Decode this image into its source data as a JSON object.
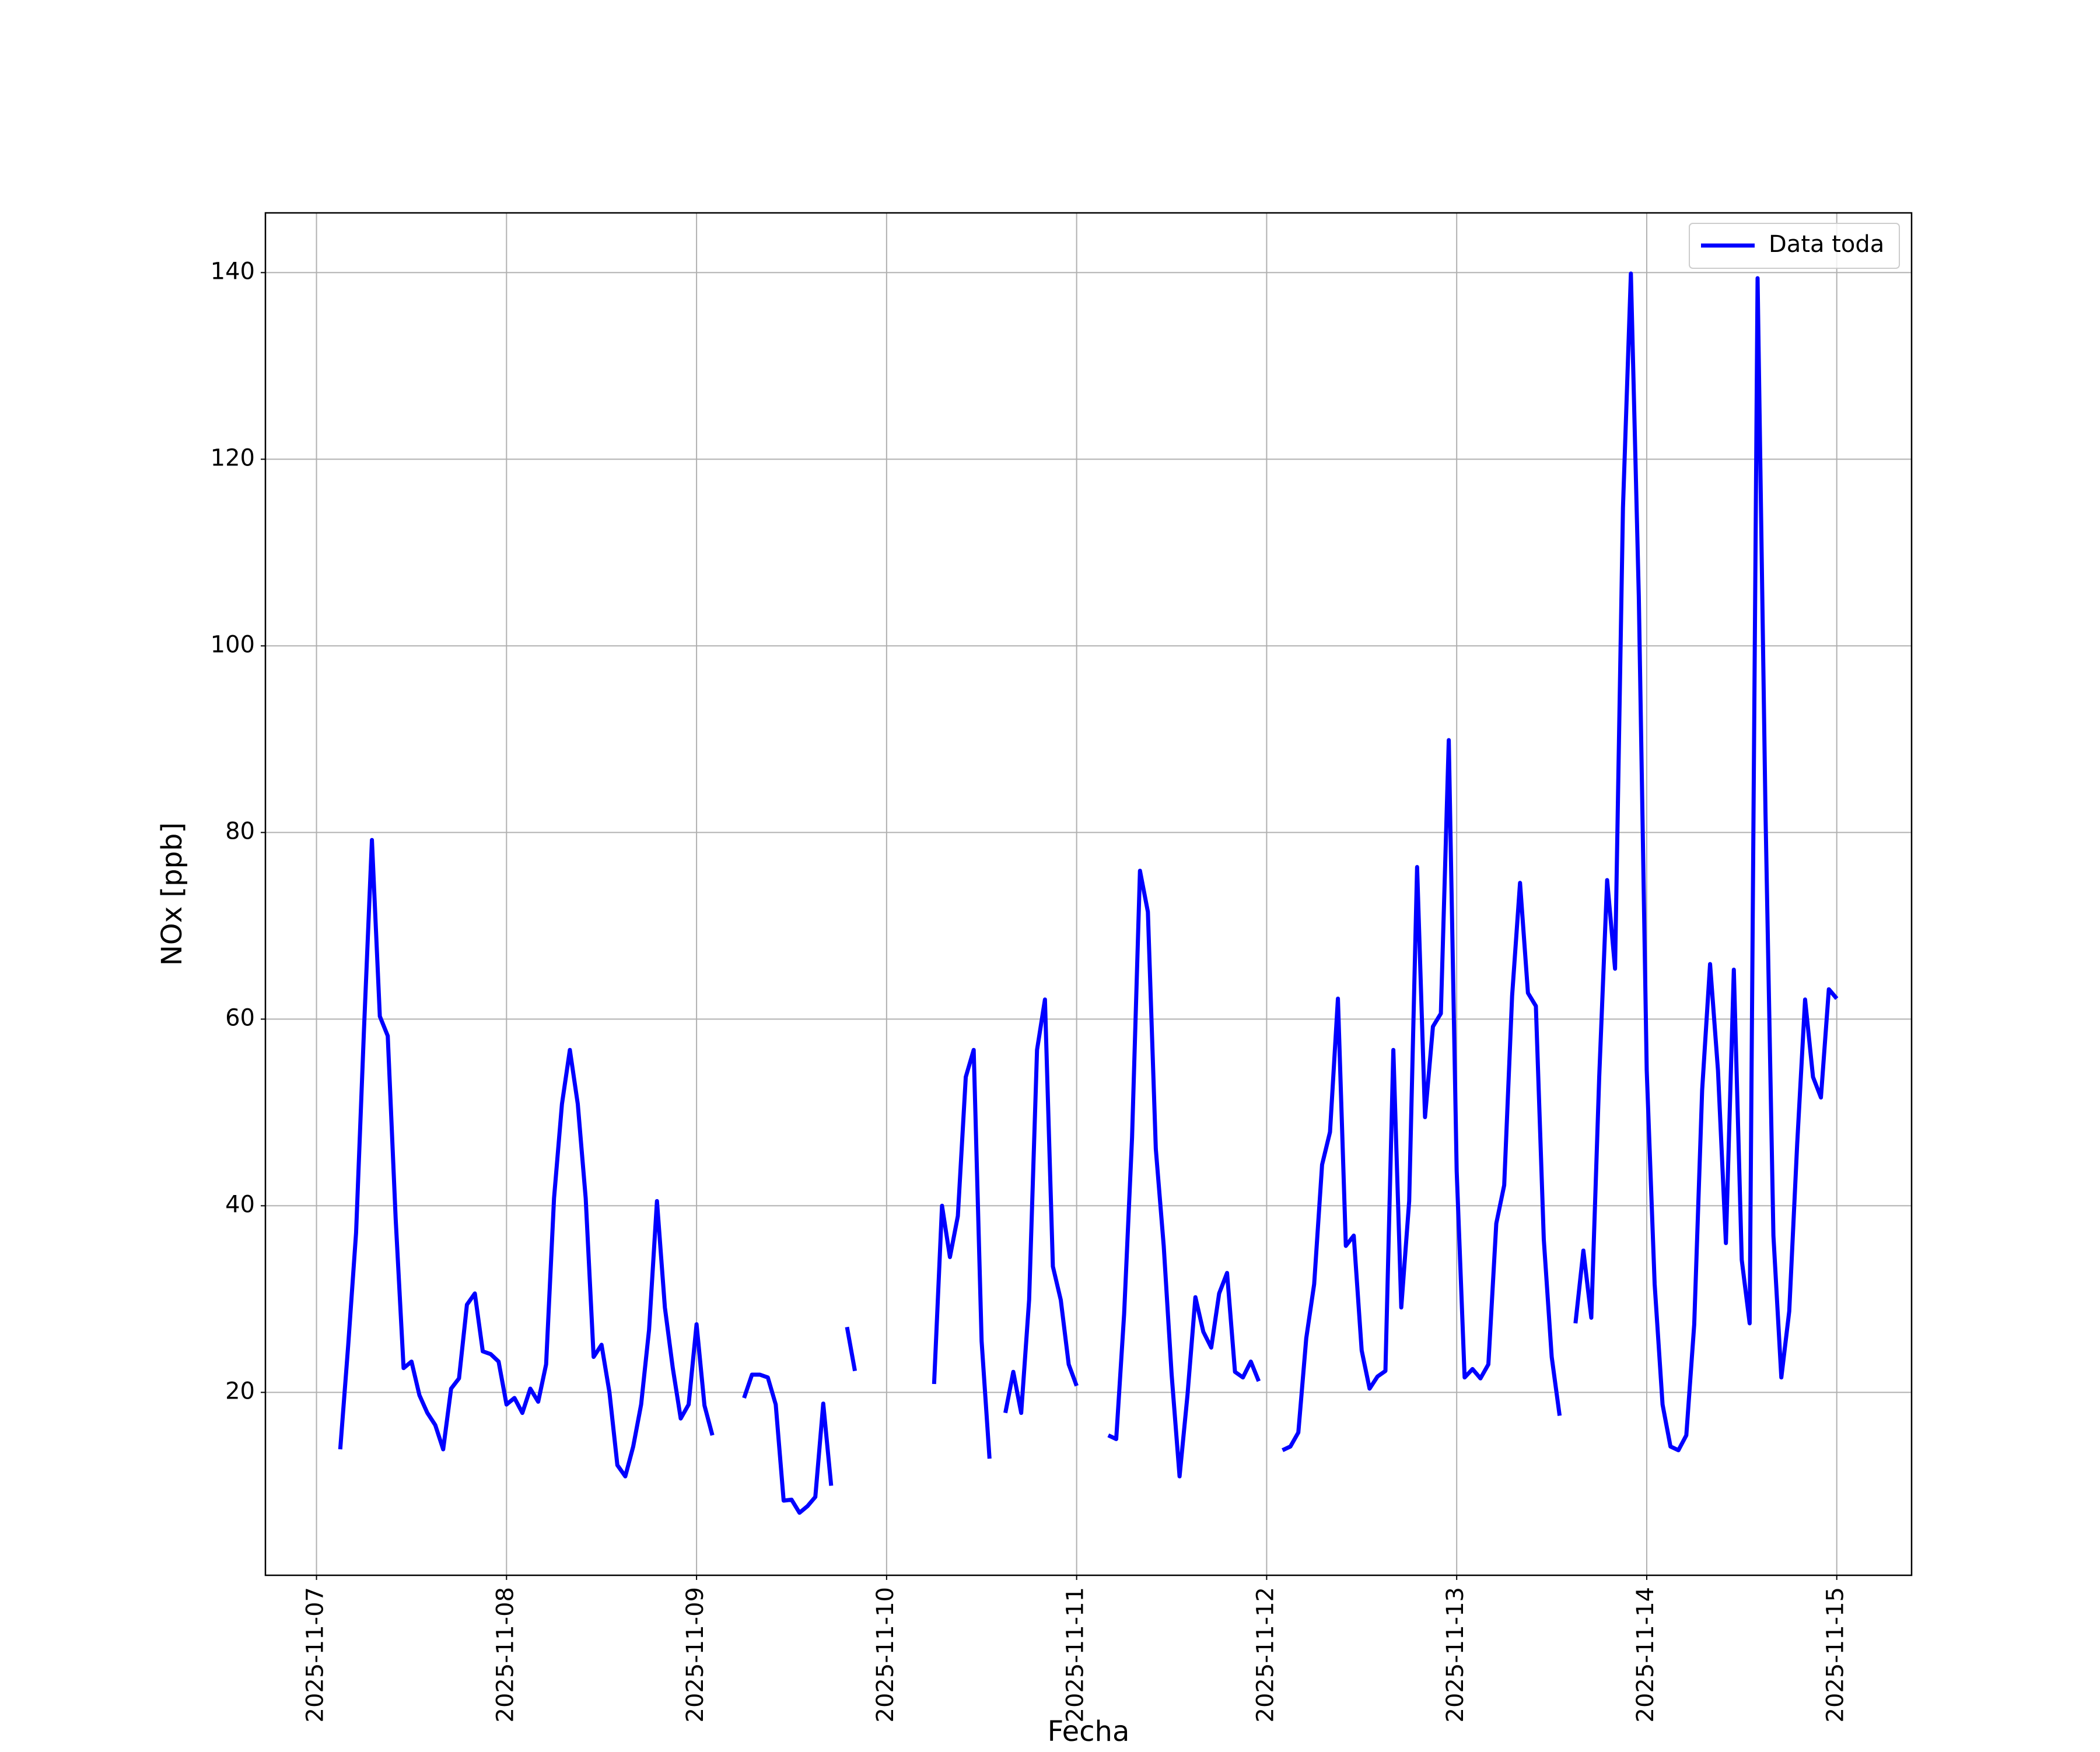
{
  "chart_data": {
    "type": "line",
    "xlabel": "Fecha",
    "ylabel": "NOx [ppb]",
    "xlim": [
      "2025-11-06T17:33",
      "2025-11-15T09:27"
    ],
    "xticks": [
      "2025-11-07",
      "2025-11-08",
      "2025-11-09",
      "2025-11-10",
      "2025-11-11",
      "2025-11-12",
      "2025-11-13",
      "2025-11-14",
      "2025-11-15"
    ],
    "ylim": [
      0.4,
      146.4
    ],
    "yticks": [
      20,
      40,
      60,
      80,
      100,
      120,
      140
    ],
    "grid": true,
    "legend": "upper right",
    "x": [
      "2025-11-07T03:00",
      "2025-11-07T04:00",
      "2025-11-07T05:00",
      "2025-11-07T06:00",
      "2025-11-07T07:00",
      "2025-11-07T08:00",
      "2025-11-07T09:00",
      "2025-11-07T10:00",
      "2025-11-07T11:00",
      "2025-11-07T12:00",
      "2025-11-07T13:00",
      "2025-11-07T14:00",
      "2025-11-07T15:00",
      "2025-11-07T16:00",
      "2025-11-07T17:00",
      "2025-11-07T18:00",
      "2025-11-07T19:00",
      "2025-11-07T20:00",
      "2025-11-07T21:00",
      "2025-11-07T22:00",
      "2025-11-07T23:00",
      "2025-11-08T00:00",
      "2025-11-08T01:00",
      "2025-11-08T02:00",
      "2025-11-08T03:00",
      "2025-11-08T04:00",
      "2025-11-08T05:00",
      "2025-11-08T06:00",
      "2025-11-08T07:00",
      "2025-11-08T08:00",
      "2025-11-08T09:00",
      "2025-11-08T10:00",
      "2025-11-08T11:00",
      "2025-11-08T12:00",
      "2025-11-08T13:00",
      "2025-11-08T14:00",
      "2025-11-08T15:00",
      "2025-11-08T16:00",
      "2025-11-08T17:00",
      "2025-11-08T18:00",
      "2025-11-08T19:00",
      "2025-11-08T20:00",
      "2025-11-08T21:00",
      "2025-11-08T22:00",
      "2025-11-08T23:00",
      "2025-11-09T00:00",
      "2025-11-09T01:00",
      "2025-11-09T02:00",
      "2025-11-09T03:00",
      "2025-11-09T04:00",
      "2025-11-09T05:00",
      "2025-11-09T06:00",
      "2025-11-09T07:00",
      "2025-11-09T08:00",
      "2025-11-09T09:00",
      "2025-11-09T10:00",
      "2025-11-09T11:00",
      "2025-11-09T12:00",
      "2025-11-09T13:00",
      "2025-11-09T14:00",
      "2025-11-09T15:00",
      "2025-11-09T16:00",
      "2025-11-09T17:00",
      "2025-11-09T18:00",
      "2025-11-09T19:00",
      "2025-11-09T20:00",
      "2025-11-09T21:00",
      "2025-11-09T22:00",
      "2025-11-09T23:00",
      "2025-11-10T00:00",
      "2025-11-10T01:00",
      "2025-11-10T02:00",
      "2025-11-10T03:00",
      "2025-11-10T04:00",
      "2025-11-10T05:00",
      "2025-11-10T06:00",
      "2025-11-10T07:00",
      "2025-11-10T08:00",
      "2025-11-10T09:00",
      "2025-11-10T10:00",
      "2025-11-10T11:00",
      "2025-11-10T12:00",
      "2025-11-10T13:00",
      "2025-11-10T14:00",
      "2025-11-10T15:00",
      "2025-11-10T16:00",
      "2025-11-10T17:00",
      "2025-11-10T18:00",
      "2025-11-10T19:00",
      "2025-11-10T20:00",
      "2025-11-10T21:00",
      "2025-11-10T22:00",
      "2025-11-10T23:00",
      "2025-11-11T00:00",
      "2025-11-11T01:00",
      "2025-11-11T02:00",
      "2025-11-11T03:00",
      "2025-11-11T04:00",
      "2025-11-11T05:00",
      "2025-11-11T06:00",
      "2025-11-11T07:00",
      "2025-11-11T08:00",
      "2025-11-11T09:00",
      "2025-11-11T10:00",
      "2025-11-11T11:00",
      "2025-11-11T12:00",
      "2025-11-11T13:00",
      "2025-11-11T14:00",
      "2025-11-11T15:00",
      "2025-11-11T16:00",
      "2025-11-11T17:00",
      "2025-11-11T18:00",
      "2025-11-11T19:00",
      "2025-11-11T20:00",
      "2025-11-11T21:00",
      "2025-11-11T22:00",
      "2025-11-11T23:00",
      "2025-11-12T00:00",
      "2025-11-12T01:00",
      "2025-11-12T02:00",
      "2025-11-12T03:00",
      "2025-11-12T04:00",
      "2025-11-12T05:00",
      "2025-11-12T06:00",
      "2025-11-12T07:00",
      "2025-11-12T08:00",
      "2025-11-12T09:00",
      "2025-11-12T10:00",
      "2025-11-12T11:00",
      "2025-11-12T12:00",
      "2025-11-12T13:00",
      "2025-11-12T14:00",
      "2025-11-12T15:00",
      "2025-11-12T16:00",
      "2025-11-12T17:00",
      "2025-11-12T18:00",
      "2025-11-12T19:00",
      "2025-11-12T20:00",
      "2025-11-12T21:00",
      "2025-11-12T22:00",
      "2025-11-12T23:00",
      "2025-11-13T00:00",
      "2025-11-13T01:00",
      "2025-11-13T02:00",
      "2025-11-13T03:00",
      "2025-11-13T04:00",
      "2025-11-13T05:00",
      "2025-11-13T06:00",
      "2025-11-13T07:00",
      "2025-11-13T08:00",
      "2025-11-13T09:00",
      "2025-11-13T10:00",
      "2025-11-13T11:00",
      "2025-11-13T12:00",
      "2025-11-13T13:00",
      "2025-11-13T14:00",
      "2025-11-13T15:00",
      "2025-11-13T16:00",
      "2025-11-13T17:00",
      "2025-11-13T18:00",
      "2025-11-13T19:00",
      "2025-11-13T20:00",
      "2025-11-13T21:00",
      "2025-11-13T22:00",
      "2025-11-13T23:00",
      "2025-11-14T00:00",
      "2025-11-14T01:00",
      "2025-11-14T02:00",
      "2025-11-14T03:00",
      "2025-11-14T04:00",
      "2025-11-14T05:00",
      "2025-11-14T06:00",
      "2025-11-14T07:00",
      "2025-11-14T08:00",
      "2025-11-14T09:00",
      "2025-11-14T10:00",
      "2025-11-14T11:00",
      "2025-11-14T12:00",
      "2025-11-14T13:00",
      "2025-11-14T14:00",
      "2025-11-14T15:00",
      "2025-11-14T16:00",
      "2025-11-14T17:00",
      "2025-11-14T18:00",
      "2025-11-14T19:00",
      "2025-11-14T20:00",
      "2025-11-14T21:00",
      "2025-11-14T22:00",
      "2025-11-14T23:00",
      "2025-11-15T00:00"
    ],
    "series": [
      {
        "name": "Data toda",
        "color": "#0000ff",
        "values": [
          13.9,
          25,
          37.1,
          58.9,
          79.2,
          60.3,
          58.2,
          38.6,
          22.6,
          23.3,
          19.7,
          17.8,
          16.5,
          13.9,
          20.4,
          21.5,
          29.4,
          30.6,
          24.4,
          24.1,
          23.3,
          18.7,
          19.4,
          17.8,
          20.4,
          19.0,
          23.0,
          40.8,
          50.9,
          56.7,
          50.9,
          40.8,
          23.8,
          25.1,
          20.0,
          12.2,
          11.0,
          14.2,
          18.7,
          26.7,
          40.5,
          29.1,
          22.6,
          17.2,
          18.7,
          27.3,
          18.6,
          15.4,
          null,
          null,
          null,
          19.4,
          21.9,
          21.9,
          21.6,
          18.7,
          8.4,
          8.5,
          7.1,
          7.8,
          8.8,
          18.8,
          10.0,
          null,
          27.0,
          22.3,
          null,
          null,
          null,
          null,
          null,
          null,
          null,
          null,
          null,
          20.9,
          40.0,
          34.5,
          38.9,
          53.8,
          56.7,
          25.5,
          12.9,
          null,
          17.8,
          22.2,
          17.8,
          29.9,
          56.7,
          62.1,
          33.5,
          29.9,
          23.0,
          20.7,
          null,
          null,
          null,
          15.4,
          15.0,
          28.4,
          47.3,
          75.9,
          71.5,
          46.1,
          35.7,
          21.9,
          11.0,
          19.7,
          30.2,
          26.5,
          24.8,
          30.6,
          32.8,
          22.2,
          21.6,
          23.3,
          21.2,
          null,
          null,
          13.8,
          14.2,
          15.7,
          25.8,
          31.6,
          44.4,
          47.9,
          62.2,
          35.7,
          36.8,
          24.5,
          20.4,
          21.7,
          22.3,
          56.7,
          29.1,
          40.5,
          76.3,
          49.5,
          59.2,
          60.6,
          89.9,
          43.7,
          21.6,
          22.5,
          21.5,
          23.0,
          38.1,
          42.2,
          62.5,
          74.6,
          62.8,
          61.4,
          36.4,
          23.8,
          17.5,
          null,
          27.4,
          35.2,
          28.0,
          53.8,
          74.9,
          65.4,
          114.8,
          139.9,
          105.3,
          54.5,
          31.6,
          18.7,
          14.2,
          13.8,
          15.4,
          27.3,
          52.4,
          65.9,
          54.5,
          36.0,
          65.3,
          34.2,
          27.4,
          139.4,
          82.1,
          36.8,
          21.6,
          28.7,
          46.6,
          62.1,
          53.8,
          51.6,
          63.2,
          62.2
        ]
      }
    ]
  }
}
